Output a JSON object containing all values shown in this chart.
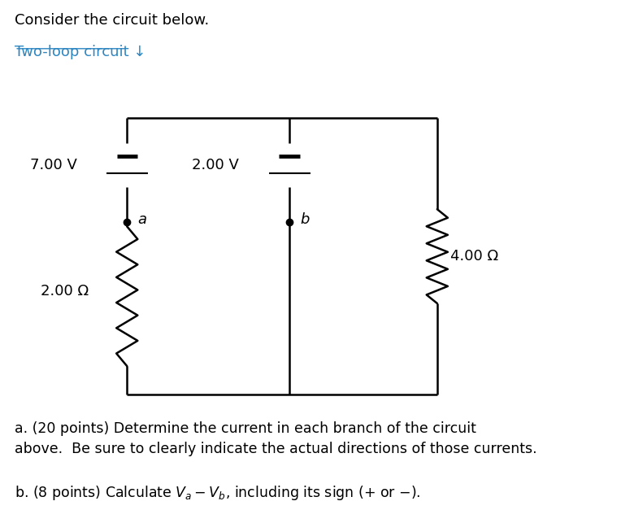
{
  "bg_color": "#ffffff",
  "title_text": "Consider the circuit below.",
  "link_text": "Two-loop circuit ↓",
  "link_color": "#2E86C1",
  "question_a": "a. (20 points) Determine the current in each branch of the circuit\nabove.  Be sure to clearly indicate the actual directions of those currents.",
  "battery_7V_label": "7.00 V",
  "battery_2V_label": "2.00 V",
  "resistor_2ohm_label": "2.00 Ω",
  "resistor_4ohm_label": "4.00 Ω",
  "node_a_label": "a",
  "node_b_label": "b"
}
